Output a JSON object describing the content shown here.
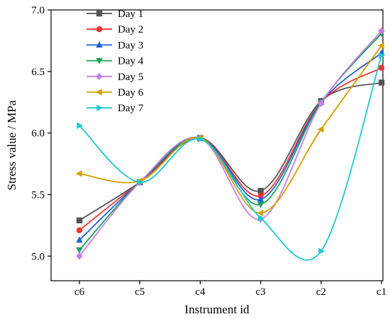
{
  "chart_data": {
    "type": "line",
    "xlabel": "Instrument id",
    "ylabel": "Stress value / MPa",
    "categories": [
      "c6",
      "c5",
      "c4",
      "c3",
      "c2",
      "c1"
    ],
    "ylim": [
      4.8,
      7.0
    ],
    "yticks": [
      5.0,
      5.5,
      6.0,
      6.5,
      7.0
    ],
    "ytick_labels": [
      "5.0",
      "5.5",
      "6.0",
      "6.5",
      "7.0"
    ],
    "legend_position": "top-left",
    "grid": false,
    "series": [
      {
        "name": "Day 1",
        "color": "#555555",
        "marker": "square",
        "values": [
          5.29,
          5.6,
          5.96,
          5.53,
          6.26,
          6.41
        ]
      },
      {
        "name": "Day 2",
        "color": "#ee3333",
        "marker": "circle",
        "values": [
          5.21,
          5.6,
          5.96,
          5.49,
          6.25,
          6.53
        ]
      },
      {
        "name": "Day 3",
        "color": "#1f5fd6",
        "marker": "triangle-up",
        "values": [
          5.13,
          5.6,
          5.96,
          5.46,
          6.25,
          6.65
        ]
      },
      {
        "name": "Day 4",
        "color": "#1aa05a",
        "marker": "triangle-down",
        "values": [
          5.05,
          5.6,
          5.96,
          5.42,
          6.25,
          6.81
        ]
      },
      {
        "name": "Day 5",
        "color": "#c77ee8",
        "marker": "diamond",
        "values": [
          5.0,
          5.6,
          5.96,
          5.3,
          6.24,
          6.83
        ]
      },
      {
        "name": "Day 6",
        "color": "#d4a000",
        "marker": "triangle-left",
        "values": [
          5.67,
          5.61,
          5.96,
          5.35,
          6.03,
          6.71
        ]
      },
      {
        "name": "Day 7",
        "color": "#1ec8d4",
        "marker": "triangle-right",
        "values": [
          6.06,
          5.6,
          5.95,
          5.31,
          5.04,
          6.63
        ]
      }
    ]
  }
}
